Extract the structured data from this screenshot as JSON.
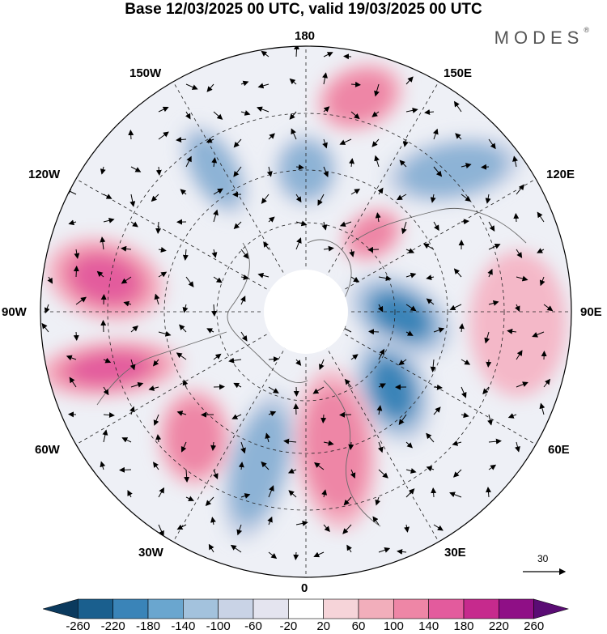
{
  "title": "Base 12/03/2025 00 UTC, valid 19/03/2025 00 UTC",
  "logo": {
    "text": "MODES",
    "mark": "®"
  },
  "labels": {
    "n180": "180",
    "e150": "150E",
    "e120": "120E",
    "e90": "90E",
    "e60": "60E",
    "e30": "30E",
    "s0": "0",
    "w30": "30W",
    "w60": "60W",
    "w90": "90W",
    "w120": "120W",
    "w150": "150W"
  },
  "reference_vector": {
    "value": "30"
  },
  "colorbar": {
    "colors": [
      "#0b3a5e",
      "#1a5f8e",
      "#3a84b8",
      "#6aa6cf",
      "#a3c2dd",
      "#c9d3e6",
      "#e4e4ef",
      "#ffffff",
      "#f6d4d9",
      "#f2aebb",
      "#ee86a6",
      "#e35b9d",
      "#c62a8d",
      "#8f0f86",
      "#5a0c74"
    ],
    "ticks": [
      "-260",
      "-220",
      "-180",
      "-140",
      "-100",
      "-60",
      "-20",
      "20",
      "60",
      "100",
      "140",
      "180",
      "220",
      "260"
    ]
  },
  "map": {
    "projection": "north-polar-stereographic",
    "field": "anomaly",
    "features": [
      {
        "type": "positive",
        "strength": 0.55
      },
      {
        "type": "negative",
        "strength": 0.6
      },
      {
        "type": "negative",
        "strength": 0.5
      },
      {
        "type": "positive",
        "strength": 0.8
      },
      {
        "type": "negative",
        "strength": 0.6
      },
      {
        "type": "positive",
        "strength": 0.6
      },
      {
        "type": "negative",
        "strength": 0.7
      },
      {
        "type": "positive",
        "strength": 0.85
      },
      {
        "type": "negative",
        "strength": 0.8
      },
      {
        "type": "positive",
        "strength": 0.6
      },
      {
        "type": "negative",
        "strength": 0.6
      },
      {
        "type": "positive",
        "strength": 0.4
      },
      {
        "type": "positive",
        "strength": 0.35
      }
    ]
  }
}
